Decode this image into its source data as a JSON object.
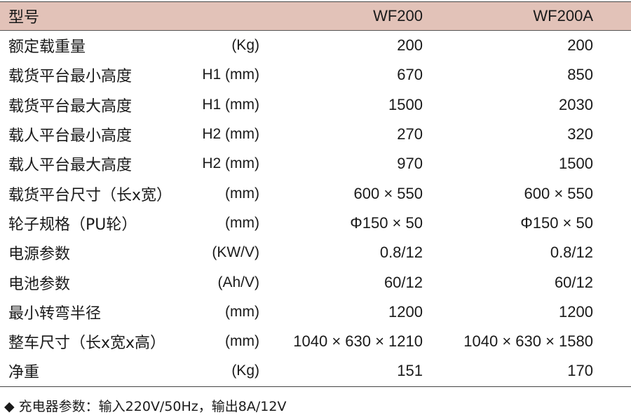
{
  "header": {
    "label": "型号",
    "models": [
      "WF200",
      "WF200A"
    ]
  },
  "rows": [
    {
      "label": "额定载重量",
      "unit": "(Kg)",
      "v1": "200",
      "v2": "200"
    },
    {
      "label": "载货平台最小高度",
      "unit": "H1 (mm)",
      "v1": "670",
      "v2": "850"
    },
    {
      "label": "载货平台最大高度",
      "unit": "H1 (mm)",
      "v1": "1500",
      "v2": "2030"
    },
    {
      "label": "载人平台最小高度",
      "unit": "H2 (mm)",
      "v1": "270",
      "v2": "320"
    },
    {
      "label": "载人平台最大高度",
      "unit": "H2 (mm)",
      "v1": "970",
      "v2": "1500"
    },
    {
      "label": "载货平台尺寸（长x宽）",
      "unit": "(mm)",
      "v1": "600 × 550",
      "v2": "600 × 550"
    },
    {
      "label": "轮子规格（PU轮）",
      "unit": "(mm)",
      "v1": "Φ150 × 50",
      "v2": "Φ150 × 50"
    },
    {
      "label": "电源参数",
      "unit": "(KW/V)",
      "v1": "0.8/12",
      "v2": "0.8/12"
    },
    {
      "label": "电池参数",
      "unit": "(Ah/V)",
      "v1": "60/12",
      "v2": "60/12"
    },
    {
      "label": "最小转弯半径",
      "unit": "(mm)",
      "v1": "1200",
      "v2": "1200"
    },
    {
      "label": "整车尺寸（长x宽x高）",
      "unit": "(mm)",
      "v1": "1040 × 630 × 1210",
      "v2": "1040 × 630 × 1580"
    },
    {
      "label": "净重",
      "unit": "(Kg)",
      "v1": "151",
      "v2": "170"
    }
  ],
  "note": {
    "bullet": "◆",
    "text": "充电器参数：输入220V/50Hz，输出8A/12V"
  },
  "colors": {
    "header_bg": "#e2c2b8"
  }
}
